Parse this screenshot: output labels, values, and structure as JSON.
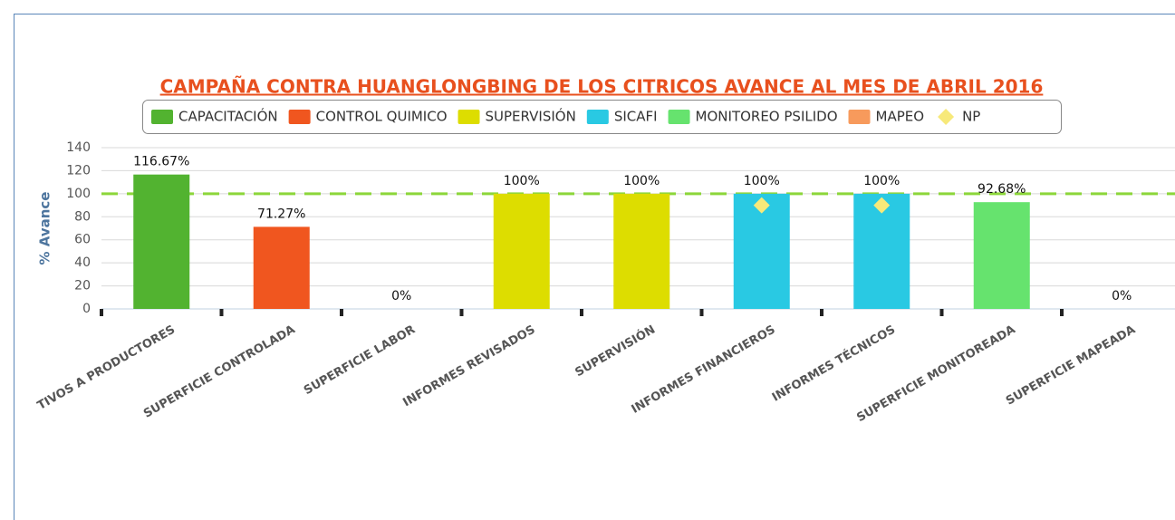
{
  "chart_data": {
    "type": "bar",
    "title": "CAMPAÑA CONTRA HUANGLONGBING DE LOS CITRICOS AVANCE AL MES DE ABRIL 2016",
    "ylabel": "% Avance",
    "categories": [
      "TIVOS A PRODUCTORES",
      "SUPERFICIE CONTROLADA",
      "SUPERFICIE LABOR",
      "INFORMES REVISADOS",
      "SUPERVISIÓN",
      "INFORMES FINANCIEROS",
      "INFORMES TÉCNICOS",
      "SUPERFICIE MONITOREADA",
      "SUPERFICIE MAPEADA"
    ],
    "series": [
      {
        "name": "CAPACITACIÓN",
        "color": "#52b330",
        "values": [
          116.67,
          null,
          null,
          null,
          null,
          null,
          null,
          null,
          null
        ],
        "value_labels": [
          "116.67%",
          null,
          null,
          null,
          null,
          null,
          null,
          null,
          null
        ]
      },
      {
        "name": "CONTROL QUIMICO",
        "color": "#f0561f",
        "values": [
          null,
          71.27,
          0,
          null,
          null,
          null,
          null,
          null,
          null
        ],
        "value_labels": [
          null,
          "71.27%",
          "0%",
          null,
          null,
          null,
          null,
          null,
          null
        ]
      },
      {
        "name": "SUPERVISIÓN",
        "color": "#dddd00",
        "values": [
          null,
          null,
          null,
          100,
          100,
          null,
          null,
          null,
          null
        ],
        "value_labels": [
          null,
          null,
          null,
          "100%",
          "100%",
          null,
          null,
          null,
          null
        ]
      },
      {
        "name": "SICAFI",
        "color": "#29c9e3",
        "values": [
          null,
          null,
          null,
          null,
          null,
          100,
          100,
          null,
          null
        ],
        "value_labels": [
          null,
          null,
          null,
          null,
          null,
          "100%",
          "100%",
          null,
          null
        ]
      },
      {
        "name": "MONITOREO PSILIDO",
        "color": "#66e36e",
        "values": [
          null,
          null,
          null,
          null,
          null,
          null,
          null,
          92.68,
          null
        ],
        "value_labels": [
          null,
          null,
          null,
          null,
          null,
          null,
          null,
          "92.68%",
          null
        ]
      },
      {
        "name": "MAPEO",
        "color": "#f79a5c",
        "values": [
          null,
          null,
          null,
          null,
          null,
          null,
          null,
          null,
          0
        ],
        "value_labels": [
          null,
          null,
          null,
          null,
          null,
          null,
          null,
          null,
          "0%"
        ]
      },
      {
        "name": "NP",
        "color": "#f7e97a",
        "marker": "diamond",
        "values": [
          null,
          null,
          null,
          null,
          null,
          90,
          90,
          null,
          null
        ]
      }
    ],
    "plot_line": {
      "value": 100,
      "color": "#8cd63a"
    },
    "ylim": [
      0,
      140
    ],
    "yticks": [
      0,
      20,
      40,
      60,
      80,
      100,
      120,
      140
    ],
    "grid": true
  }
}
